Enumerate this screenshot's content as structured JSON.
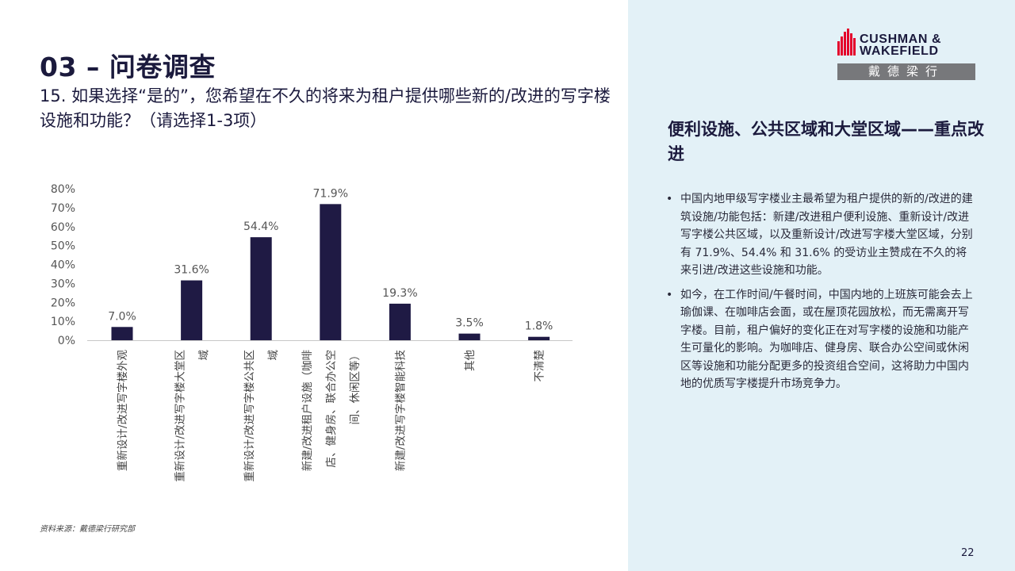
{
  "header": {
    "section_title": "03 – 问卷调查",
    "question": "15. 如果选择“是的”，您希望在不久的将来为租户提供哪些新的/改进的写字楼设施和功能？（请选择1-3项）"
  },
  "logo": {
    "line1": "CUSHMAN &",
    "line2": "WAKEFIELD",
    "cn": "戴德梁行",
    "brand_red": "#e4002b",
    "brand_gray": "#77787b"
  },
  "chart_data": {
    "type": "bar",
    "categories": [
      "重新设计/改进写字楼外观",
      "重新设计/改进写字楼大堂区域",
      "重新设计/改进写字楼公共区域",
      "新建/改进租户设施（咖啡店、健身房、联合办公空间、休闲区等）",
      "新建/改进写字楼智能科技",
      "其他",
      "不清楚"
    ],
    "category_lines": [
      [
        "重新设计/改进写字楼外观"
      ],
      [
        "重新设计/改进写字楼大堂区",
        "域"
      ],
      [
        "重新设计/改进写字楼公共区",
        "域"
      ],
      [
        "新建/改进租户设施（咖啡",
        "店、健身房、联合办公空",
        "间、休闲区等）"
      ],
      [
        "新建/改进写字楼智能科技"
      ],
      [
        "其他"
      ],
      [
        "不清楚"
      ]
    ],
    "values": [
      7.0,
      31.6,
      54.4,
      71.9,
      19.3,
      3.5,
      1.8
    ],
    "data_labels": [
      "7.0%",
      "31.6%",
      "54.4%",
      "71.9%",
      "19.3%",
      "3.5%",
      "1.8%"
    ],
    "ylim": [
      0,
      80
    ],
    "yticks": [
      "0%",
      "10%",
      "20%",
      "30%",
      "40%",
      "50%",
      "60%",
      "70%",
      "80%"
    ],
    "bar_color": "#1f1a44",
    "grid": false
  },
  "source": "资料来源：戴德梁行研究部",
  "sidebar": {
    "heading": "便利设施、公共区域和大堂区域——重点改进",
    "bullets": [
      "中国内地甲级写字楼业主最希望为租户提供的新的/改进的建筑设施/功能包括：新建/改进租户便利设施、重新设计/改进写字楼公共区域，以及重新设计/改进写字楼大堂区域，分别有 71.9%、54.4% 和 31.6% 的受访业主赞成在不久的将来引进/改进这些设施和功能。",
      "如今，在工作时间/午餐时间，中国内地的上班族可能会去上瑜伽课、在咖啡店会面，或在屋顶花园放松，而无需离开写字楼。目前，租户偏好的变化正在对写字楼的设施和功能产生可量化的影响。为咖啡店、健身房、联合办公空间或休闲区等设施和功能分配更多的投资组合空间，这将助力中国内地的优质写字楼提升市场竞争力。"
    ]
  },
  "page_number": "22"
}
